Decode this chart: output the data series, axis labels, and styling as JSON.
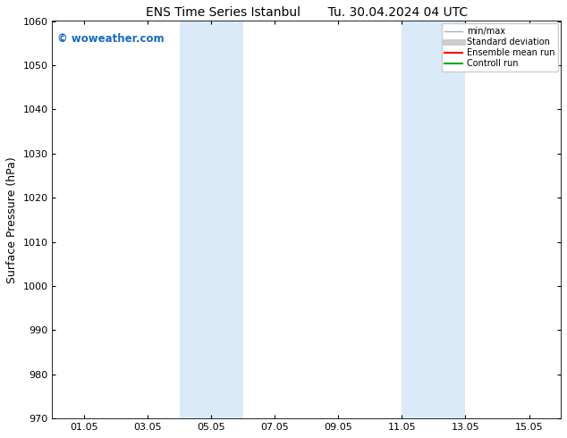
{
  "title": "ENS Time Series Istanbul       Tu. 30.04.2024 04 UTC",
  "ylabel": "Surface Pressure (hPa)",
  "ylim": [
    970,
    1060
  ],
  "yticks": [
    970,
    980,
    990,
    1000,
    1010,
    1020,
    1030,
    1040,
    1050,
    1060
  ],
  "xtick_labels": [
    "01.05",
    "03.05",
    "05.05",
    "07.05",
    "09.05",
    "11.05",
    "13.05",
    "15.05"
  ],
  "xtick_positions": [
    1,
    3,
    5,
    7,
    9,
    11,
    13,
    15
  ],
  "xlim": [
    0,
    16
  ],
  "shaded_regions": [
    {
      "start": 4.0,
      "end": 6.0
    },
    {
      "start": 11.0,
      "end": 13.0
    }
  ],
  "shaded_color": "#daeaf8",
  "watermark_text": "© woweather.com",
  "watermark_color": "#1a6abf",
  "legend_entries": [
    {
      "label": "min/max",
      "color": "#b0b0b0",
      "lw": 1.0
    },
    {
      "label": "Standard deviation",
      "color": "#cccccc",
      "lw": 5
    },
    {
      "label": "Ensemble mean run",
      "color": "#ff0000",
      "lw": 1.5
    },
    {
      "label": "Controll run",
      "color": "#00aa00",
      "lw": 1.5
    }
  ],
  "background_color": "#ffffff",
  "title_fontsize": 10,
  "tick_fontsize": 8,
  "ylabel_fontsize": 9
}
